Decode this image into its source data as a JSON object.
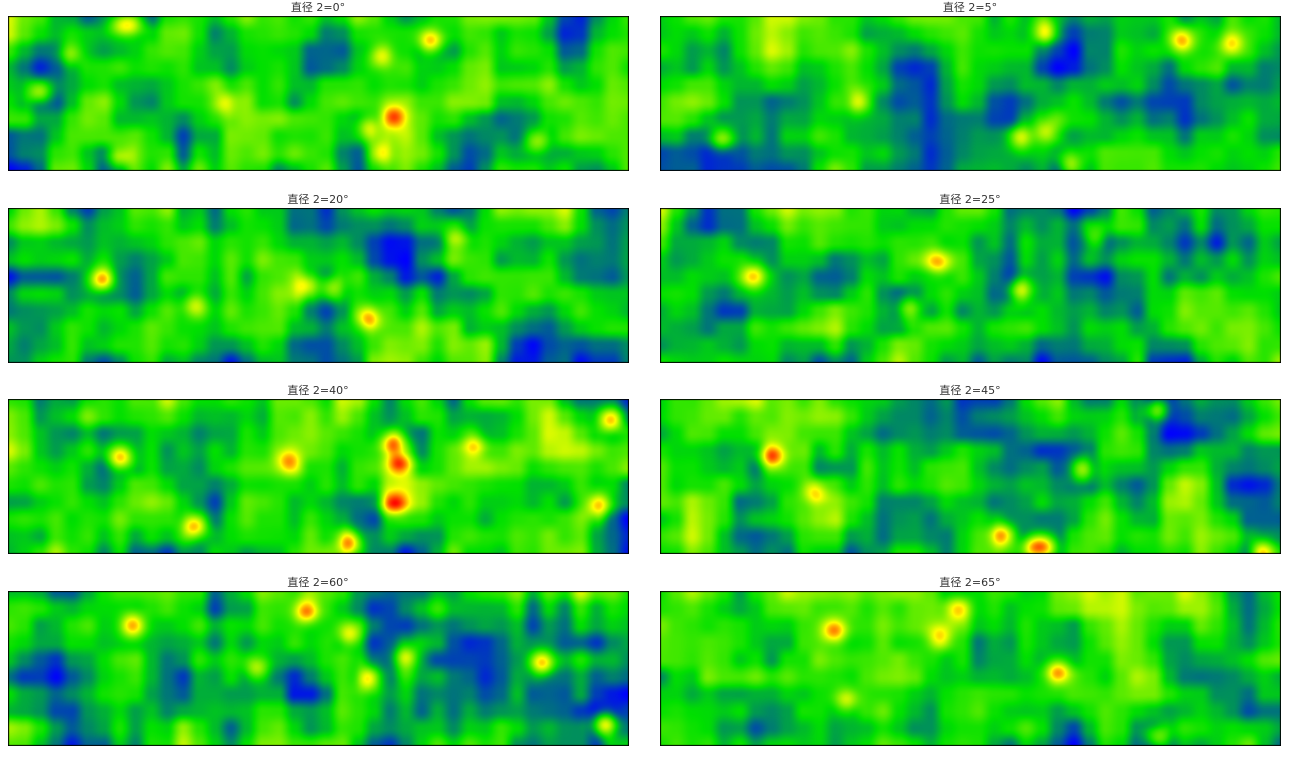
{
  "chart_data": {
    "type": "heatmap",
    "colormap": [
      "#0000ff",
      "#00e000",
      "#ffff00",
      "#ff0000"
    ],
    "panels": [
      {
        "title": "直径 2=0°",
        "grid": [
          10,
          40
        ],
        "hotspots": [
          [
            0.55,
            0.05,
            0.2
          ],
          [
            0.62,
            0.9,
            0.18
          ],
          [
            0.42,
            0.24,
            0.1
          ],
          [
            0.55,
            0.05,
            0.18
          ],
          [
            0.68,
            0.49,
            0.05
          ],
          [
            0.45,
            0.56,
            0.35
          ],
          [
            0.55,
            0.8,
            0.85
          ],
          [
            0.58,
            0.88,
            0.6
          ],
          [
            0.85,
            0.65,
            0.62
          ],
          [
            0.6,
            0.25,
            0.6
          ],
          [
            0.5,
            0.72,
            0.58
          ],
          [
            0.8,
            0.16,
            0.68
          ]
        ],
        "image_cells": "procedural"
      },
      {
        "title": "直径 2=5°",
        "grid": [
          10,
          40
        ],
        "hotspots": [
          [
            0.75,
            0.1,
            0.62
          ],
          [
            0.6,
            0.55,
            0.32
          ],
          [
            0.85,
            0.15,
            0.84
          ],
          [
            0.55,
            0.75,
            0.62
          ],
          [
            0.62,
            0.18,
            0.92
          ],
          [
            0.45,
            0.95,
            0.66
          ],
          [
            0.62,
            0.79,
            0.1
          ],
          [
            0.66,
            0.78,
            0.58
          ]
        ],
        "image_cells": "procedural"
      },
      {
        "title": "直径 2=20°",
        "grid": [
          10,
          40
        ],
        "hotspots": [
          [
            0.82,
            0.46,
            0.15
          ],
          [
            0.78,
            0.71,
            0.58
          ],
          [
            0.6,
            0.5,
            0.48
          ],
          [
            0.55,
            0.52,
            0.52
          ],
          [
            0.4,
            0.62,
            0.3
          ],
          [
            0.5,
            0.2,
            0.72
          ]
        ],
        "image_cells": "procedural"
      },
      {
        "title": "直径 2=25°",
        "grid": [
          10,
          40
        ],
        "hotspots": [
          [
            0.82,
            0.44,
            0.15
          ],
          [
            0.75,
            0.53,
            0.58
          ],
          [
            0.55,
            0.35,
            0.45
          ],
          [
            0.5,
            0.65,
            0.4
          ],
          [
            0.45,
            0.2,
            0.7
          ]
        ],
        "image_cells": "procedural"
      },
      {
        "title": "直径 2=40°",
        "grid": [
          10,
          40
        ],
        "hotspots": [
          [
            0.88,
            0.38,
            0.18
          ],
          [
            0.95,
            0.27,
            0.62
          ],
          [
            0.88,
            0.82,
            0.3
          ],
          [
            0.85,
            0.41,
            0.63
          ],
          [
            0.95,
            0.13,
            0.97
          ],
          [
            0.92,
            0.68,
            0.95
          ],
          [
            0.98,
            0.92,
            0.55
          ],
          [
            0.9,
            0.67,
            0.62
          ],
          [
            0.6,
            0.4,
            0.45
          ],
          [
            0.55,
            0.3,
            0.75
          ]
        ],
        "image_cells": "procedural"
      },
      {
        "title": "直径 2=45°",
        "grid": [
          10,
          40
        ],
        "hotspots": [
          [
            0.88,
            0.37,
            0.18
          ],
          [
            0.62,
            0.59,
            0.25
          ],
          [
            0.9,
            0.88,
            0.55
          ],
          [
            0.8,
            0.95,
            0.6
          ],
          [
            0.9,
            0.99,
            0.97
          ],
          [
            0.7,
            0.07,
            0.8
          ],
          [
            0.8,
            0.95,
            0.62
          ],
          [
            0.75,
            0.45,
            0.68
          ]
        ],
        "image_cells": "procedural"
      },
      {
        "title": "直径 2=60°",
        "grid": [
          10,
          40
        ],
        "hotspots": [
          [
            0.88,
            0.22,
            0.2
          ],
          [
            0.82,
            0.13,
            0.48
          ],
          [
            0.75,
            0.43,
            0.64
          ],
          [
            0.93,
            0.46,
            0.86
          ],
          [
            0.6,
            0.28,
            0.55
          ],
          [
            0.98,
            0.86,
            0.96
          ],
          [
            0.88,
            0.56,
            0.58
          ],
          [
            0.52,
            0.5,
            0.4
          ]
        ],
        "image_cells": "procedural"
      },
      {
        "title": "直径 2=65°",
        "grid": [
          10,
          40
        ],
        "hotspots": [
          [
            0.85,
            0.25,
            0.28
          ],
          [
            0.6,
            0.12,
            0.48
          ],
          [
            0.8,
            0.52,
            0.64
          ],
          [
            0.6,
            0.3,
            0.45
          ],
          [
            0.5,
            0.7,
            0.3
          ],
          [
            0.55,
            0.95,
            0.8
          ]
        ],
        "image_cells": "procedural"
      }
    ]
  }
}
